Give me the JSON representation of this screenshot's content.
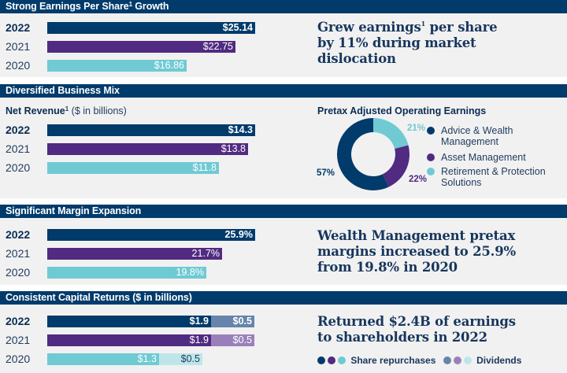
{
  "colors": {
    "navy": "#003b6b",
    "purple": "#512a82",
    "teal": "#6fcad3",
    "navy_light": "#6784aa",
    "purple_light": "#9a80bb",
    "teal_light": "#bde6e9",
    "section_bg": "#f1f1f1"
  },
  "eps": {
    "header": "Strong Earnings Per Share",
    "header_sup": "1",
    "header_suffix": " Growth",
    "headline_pre": "Grew earnings",
    "headline_sup": "1",
    "headline_line1_post": " per share",
    "headline_line2": "by 11% during market",
    "headline_line3": "dislocation"
  },
  "revenue": {
    "header": "Diversified Business Mix",
    "subtitle_bold": "Net Revenue",
    "subtitle_sup": "1",
    "subtitle_rest": " ($ in billions)"
  },
  "donut": {
    "title": "Pretax Adjusted Operating Earnings",
    "legend": [
      "Advice & Wealth",
      "Management",
      "Asset Management",
      "Retirement & Protection",
      "Solutions"
    ]
  },
  "margin": {
    "header": "Significant Margin Expansion",
    "headline_line1": "Wealth Management pretax",
    "headline_line2": "margins increased to 25.9%",
    "headline_line3": "from 19.8% in 2020"
  },
  "capital": {
    "header": "Consistent Capital Returns ($ in billions)",
    "headline_line1": "Returned $2.4B of earnings",
    "headline_line2": "to shareholders in 2022",
    "legend_share": "Share repurchases",
    "legend_div": "Dividends"
  },
  "chart_data": [
    {
      "type": "bar",
      "orientation": "horizontal",
      "title": "Strong Earnings Per Share¹ Growth",
      "categories": [
        "2022",
        "2021",
        "2020"
      ],
      "values": [
        25.14,
        22.75,
        16.86
      ],
      "labels": [
        "$25.14",
        "$22.75",
        "$16.86"
      ],
      "xlim": [
        0,
        27.6
      ]
    },
    {
      "type": "bar",
      "orientation": "horizontal",
      "title": "Net Revenue¹ ($ in billions)",
      "categories": [
        "2022",
        "2021",
        "2020"
      ],
      "values": [
        14.3,
        13.8,
        11.8
      ],
      "labels": [
        "$14.3",
        "$13.8",
        "$11.8"
      ],
      "xlim": [
        0,
        15.7
      ]
    },
    {
      "type": "pie",
      "title": "Pretax Adjusted Operating Earnings",
      "categories": [
        "Advice & Wealth Management",
        "Asset Management",
        "Retirement & Protection Solutions"
      ],
      "values": [
        57,
        22,
        21
      ],
      "labels": [
        "57%",
        "22%",
        "21%"
      ],
      "donut": true
    },
    {
      "type": "bar",
      "orientation": "horizontal",
      "title": "Significant Margin Expansion",
      "categories": [
        "2022",
        "2021",
        "2020"
      ],
      "values": [
        25.9,
        21.7,
        19.8
      ],
      "labels": [
        "25.9%",
        "21.7%",
        "19.8%"
      ],
      "xlim": [
        0,
        28.4
      ]
    },
    {
      "type": "bar",
      "stacked": true,
      "orientation": "horizontal",
      "title": "Consistent Capital Returns ($ in billions)",
      "categories": [
        "2022",
        "2021",
        "2020"
      ],
      "series": [
        {
          "name": "Share repurchases",
          "values": [
            1.9,
            1.9,
            1.3
          ],
          "labels": [
            "$1.9",
            "$1.9",
            "$1.3"
          ]
        },
        {
          "name": "Dividends",
          "values": [
            0.5,
            0.5,
            0.5
          ],
          "labels": [
            "$0.5",
            "$0.5",
            "$0.5"
          ]
        }
      ],
      "xlim": [
        0,
        2.65
      ]
    }
  ]
}
